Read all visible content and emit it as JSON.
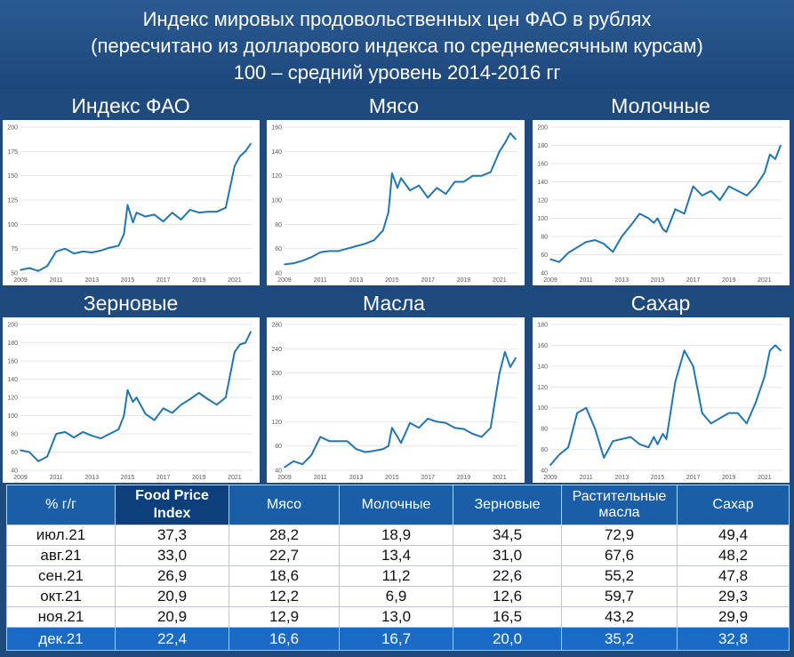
{
  "header": {
    "line1": "Индекс мировых продовольственных цен ФАО в рублях",
    "line2": "(пересчитано из долларового индекса по среднемесячным курсам)",
    "line3": "100 – средний уровень 2014-2016 гг"
  },
  "chart_data": [
    {
      "type": "line",
      "title": "Индекс ФАО",
      "color": "#1f77b4",
      "x": [
        2009,
        2009.5,
        2010,
        2010.5,
        2011,
        2011.5,
        2012,
        2012.5,
        2013,
        2013.5,
        2014,
        2014.5,
        2014.8,
        2015,
        2015.3,
        2015.5,
        2016,
        2016.5,
        2017,
        2017.5,
        2018,
        2018.5,
        2019,
        2019.5,
        2020,
        2020.5,
        2021,
        2021.3,
        2021.6,
        2021.9
      ],
      "y": [
        53,
        55,
        52,
        57,
        72,
        75,
        70,
        72,
        71,
        73,
        76,
        78,
        90,
        120,
        102,
        112,
        108,
        110,
        103,
        112,
        105,
        115,
        112,
        113,
        113,
        117,
        160,
        170,
        175,
        183
      ],
      "ylim": [
        50,
        200
      ],
      "yticks": [
        50,
        75,
        100,
        125,
        150,
        175,
        200
      ],
      "xticks": [
        2009,
        2011,
        2013,
        2015,
        2017,
        2019,
        2021
      ]
    },
    {
      "type": "line",
      "title": "Мясо",
      "color": "#1f77b4",
      "x": [
        2009,
        2009.5,
        2010,
        2010.5,
        2011,
        2011.5,
        2012,
        2012.5,
        2013,
        2013.5,
        2014,
        2014.5,
        2014.8,
        2015,
        2015.3,
        2015.5,
        2016,
        2016.5,
        2017,
        2017.5,
        2018,
        2018.5,
        2019,
        2019.5,
        2020,
        2020.5,
        2021,
        2021.3,
        2021.6,
        2021.9
      ],
      "y": [
        47,
        48,
        50,
        53,
        57,
        58,
        58,
        60,
        62,
        64,
        67,
        75,
        90,
        122,
        110,
        118,
        108,
        112,
        102,
        110,
        105,
        115,
        115,
        120,
        120,
        123,
        140,
        147,
        155,
        150
      ],
      "ylim": [
        40,
        160
      ],
      "yticks": [
        40,
        60,
        80,
        100,
        120,
        140,
        160
      ],
      "xticks": [
        2009,
        2011,
        2013,
        2015,
        2017,
        2019,
        2021
      ]
    },
    {
      "type": "line",
      "title": "Молочные",
      "color": "#1f77b4",
      "x": [
        2009,
        2009.5,
        2010,
        2010.5,
        2011,
        2011.5,
        2012,
        2012.5,
        2013,
        2013.5,
        2014,
        2014.5,
        2014.8,
        2015,
        2015.3,
        2015.5,
        2016,
        2016.5,
        2017,
        2017.5,
        2018,
        2018.5,
        2019,
        2019.5,
        2020,
        2020.5,
        2021,
        2021.3,
        2021.6,
        2021.9
      ],
      "y": [
        55,
        52,
        62,
        68,
        74,
        76,
        72,
        63,
        80,
        92,
        105,
        100,
        95,
        100,
        88,
        85,
        110,
        105,
        135,
        125,
        130,
        120,
        135,
        130,
        125,
        135,
        150,
        170,
        165,
        180
      ],
      "ylim": [
        40,
        200
      ],
      "yticks": [
        40,
        60,
        80,
        100,
        120,
        140,
        160,
        180,
        200
      ],
      "xticks": [
        2009,
        2011,
        2013,
        2015,
        2017,
        2019,
        2021
      ]
    },
    {
      "type": "line",
      "title": "Зерновые",
      "color": "#1f77b4",
      "x": [
        2009,
        2009.5,
        2010,
        2010.5,
        2011,
        2011.5,
        2012,
        2012.5,
        2013,
        2013.5,
        2014,
        2014.5,
        2014.8,
        2015,
        2015.3,
        2015.5,
        2016,
        2016.5,
        2017,
        2017.5,
        2018,
        2018.5,
        2019,
        2019.5,
        2020,
        2020.5,
        2021,
        2021.3,
        2021.6,
        2021.9
      ],
      "y": [
        62,
        60,
        50,
        55,
        80,
        82,
        76,
        82,
        78,
        75,
        80,
        85,
        100,
        128,
        115,
        120,
        102,
        95,
        108,
        103,
        112,
        118,
        125,
        118,
        112,
        120,
        170,
        178,
        180,
        192
      ],
      "ylim": [
        40,
        200
      ],
      "yticks": [
        40,
        60,
        80,
        100,
        120,
        140,
        160,
        180,
        200
      ],
      "xticks": [
        2009,
        2011,
        2013,
        2015,
        2017,
        2019,
        2021
      ]
    },
    {
      "type": "line",
      "title": "Масла",
      "color": "#1f77b4",
      "x": [
        2009,
        2009.5,
        2010,
        2010.5,
        2011,
        2011.5,
        2012,
        2012.5,
        2013,
        2013.5,
        2014,
        2014.5,
        2014.8,
        2015,
        2015.3,
        2015.5,
        2016,
        2016.5,
        2017,
        2017.5,
        2018,
        2018.5,
        2019,
        2019.5,
        2020,
        2020.5,
        2021,
        2021.3,
        2021.6,
        2021.9
      ],
      "y": [
        45,
        55,
        50,
        65,
        95,
        88,
        88,
        88,
        75,
        70,
        72,
        75,
        80,
        110,
        95,
        85,
        118,
        110,
        125,
        120,
        118,
        110,
        108,
        100,
        95,
        110,
        200,
        235,
        210,
        225
      ],
      "ylim": [
        40,
        280
      ],
      "yticks": [
        40,
        80,
        120,
        160,
        200,
        240,
        280
      ],
      "xticks": [
        2009,
        2011,
        2013,
        2015,
        2017,
        2019,
        2021
      ]
    },
    {
      "type": "line",
      "title": "Сахар",
      "color": "#1f77b4",
      "x": [
        2009,
        2009.5,
        2010,
        2010.5,
        2011,
        2011.5,
        2012,
        2012.5,
        2013,
        2013.5,
        2014,
        2014.5,
        2014.8,
        2015,
        2015.3,
        2015.5,
        2016,
        2016.5,
        2017,
        2017.5,
        2018,
        2018.5,
        2019,
        2019.5,
        2020,
        2020.5,
        2021,
        2021.3,
        2021.6,
        2021.9
      ],
      "y": [
        45,
        55,
        62,
        95,
        100,
        80,
        52,
        68,
        70,
        72,
        65,
        62,
        72,
        65,
        75,
        70,
        125,
        155,
        140,
        95,
        85,
        90,
        95,
        95,
        85,
        105,
        130,
        155,
        160,
        155
      ],
      "ylim": [
        40,
        180
      ],
      "yticks": [
        40,
        60,
        80,
        100,
        120,
        140,
        160,
        180
      ],
      "xticks": [
        2009,
        2011,
        2013,
        2015,
        2017,
        2019,
        2021
      ]
    }
  ],
  "table": {
    "headers": [
      "% г/г",
      "Food Price Index",
      "Мясо",
      "Молочные",
      "Зерновые",
      "Растительные масла",
      "Сахар"
    ],
    "rows": [
      [
        "июл.21",
        "37,3",
        "28,2",
        "18,9",
        "34,5",
        "72,9",
        "49,4"
      ],
      [
        "авг.21",
        "33,0",
        "22,7",
        "13,4",
        "31,0",
        "67,6",
        "48,2"
      ],
      [
        "сен.21",
        "26,9",
        "18,6",
        "11,2",
        "22,6",
        "55,2",
        "47,8"
      ],
      [
        "окт.21",
        "20,9",
        "12,2",
        "6,9",
        "12,6",
        "59,7",
        "29,3"
      ],
      [
        "ноя.21",
        "20,9",
        "12,9",
        "13,0",
        "16,5",
        "43,2",
        "29,9"
      ],
      [
        "дек.21",
        "22,4",
        "16,6",
        "16,7",
        "20,0",
        "35,2",
        "32,8"
      ]
    ]
  }
}
